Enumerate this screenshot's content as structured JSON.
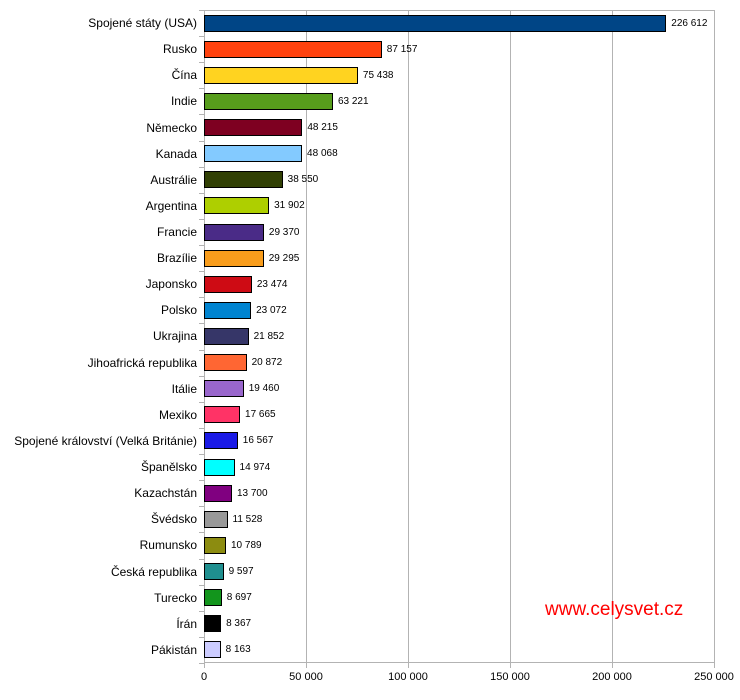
{
  "chart_data": {
    "type": "bar",
    "orientation": "horizontal",
    "title": "",
    "xlabel": "",
    "ylabel": "",
    "xlim": [
      0,
      250000
    ],
    "grid": "vertical-only",
    "legend": "none",
    "categories": [
      "Spojené státy (USA)",
      "Rusko",
      "Čína",
      "Indie",
      "Německo",
      "Kanada",
      "Austrálie",
      "Argentina",
      "Francie",
      "Brazílie",
      "Japonsko",
      "Polsko",
      "Ukrajina",
      "Jihoafrická republika",
      "Itálie",
      "Mexiko",
      "Spojené království (Velká Británie)",
      "Španělsko",
      "Kazachstán",
      "Švédsko",
      "Rumunsko",
      "Česká republika",
      "Turecko",
      "Írán",
      "Pákistán"
    ],
    "values": [
      226612,
      87157,
      75438,
      63221,
      48215,
      48068,
      38550,
      31902,
      29370,
      29295,
      23474,
      23072,
      21852,
      20872,
      19460,
      17665,
      16567,
      14974,
      13700,
      11528,
      10789,
      9597,
      8697,
      8367,
      8163
    ],
    "value_labels": [
      "226 612",
      "87 157",
      "75 438",
      "63 221",
      "48 215",
      "48 068",
      "38 550",
      "31 902",
      "29 370",
      "29 295",
      "23 474",
      "23 072",
      "21 852",
      "20 872",
      "19 460",
      "17 665",
      "16 567",
      "14 974",
      "13 700",
      "11 528",
      "10 789",
      "9 597",
      "8 697",
      "8 367",
      "8 163"
    ],
    "bar_colors": [
      "#004586",
      "#FF420E",
      "#FFD320",
      "#579D1C",
      "#7E0021",
      "#83CAFF",
      "#314004",
      "#AECF00",
      "#4A2B87",
      "#F99D1C",
      "#CE0B14",
      "#0084D1",
      "#363668",
      "#FF6633",
      "#9966CC",
      "#FF3366",
      "#1A1AE6",
      "#00FFFF",
      "#800080",
      "#999999",
      "#8C8C10",
      "#1F8F8F",
      "#12951C",
      "#000000",
      "#CCCCFF"
    ],
    "bar_border_color": "#000000",
    "gridline_color": "#B3B3B3",
    "x_ticks": [
      0,
      50000,
      100000,
      150000,
      200000,
      250000
    ],
    "x_tick_labels": [
      "0",
      "50 000",
      "100 000",
      "150 000",
      "200 000",
      "250 000"
    ]
  },
  "watermark": {
    "text": "www.celysvet.cz",
    "color": "#FF0000"
  }
}
